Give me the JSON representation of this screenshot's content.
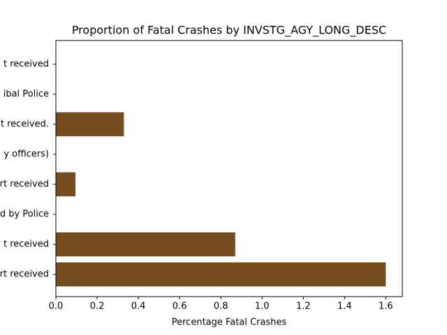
{
  "chart_data": {
    "type": "barh",
    "title": "Proportion of Fatal Crashes by INVSTG_AGY_LONG_DESC",
    "xlabel": "Percentage Fatal Crashes",
    "categories": [
      "rt received",
      "t received",
      "d by Police",
      "rt received",
      "y officers)",
      "t received.",
      "ibal Police",
      "t received"
    ],
    "values": [
      1.6,
      0.87,
      0,
      0.095,
      0,
      0.33,
      0,
      0
    ],
    "color": "#754c1e",
    "xlim": [
      0,
      1.68
    ],
    "xticks": [
      {
        "value": 0,
        "label": "0.0"
      },
      {
        "value": 0.2,
        "label": "0.2"
      },
      {
        "value": 0.4,
        "label": "0.4"
      },
      {
        "value": 0.6,
        "label": "0.6"
      },
      {
        "value": 0.8,
        "label": "0.8"
      },
      {
        "value": 1.0,
        "label": "1.0"
      },
      {
        "value": 1.2,
        "label": "1.2"
      },
      {
        "value": 1.4,
        "label": "1.4"
      },
      {
        "value": 1.6,
        "label": "1.6"
      }
    ]
  }
}
